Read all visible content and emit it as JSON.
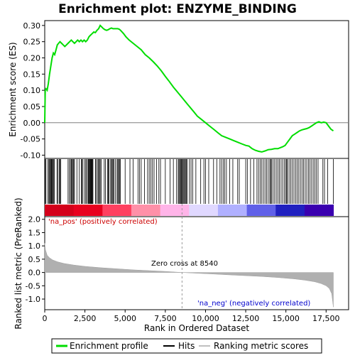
{
  "chart_data": {
    "type": "line",
    "title": "Enrichment plot: ENZYME_BINDING",
    "es_panel": {
      "ylabel": "Enrichment score (ES)",
      "ylim": [
        -0.11,
        0.315
      ],
      "yticks": [
        "-0.10",
        "-0.05",
        "0.00",
        "0.05",
        "0.10",
        "0.15",
        "0.20",
        "0.25",
        "0.30"
      ],
      "ytick_values": [
        -0.1,
        -0.05,
        0.0,
        0.05,
        0.1,
        0.15,
        0.2,
        0.25,
        0.3
      ],
      "series": [
        {
          "name": "Enrichment profile",
          "color": "#00dd00",
          "x": [
            0,
            30,
            80,
            150,
            220,
            300,
            380,
            460,
            540,
            620,
            700,
            780,
            860,
            950,
            1050,
            1150,
            1250,
            1350,
            1450,
            1550,
            1650,
            1750,
            1850,
            1950,
            2050,
            2150,
            2250,
            2350,
            2450,
            2550,
            2650,
            2750,
            2850,
            2950,
            3050,
            3150,
            3250,
            3350,
            3450,
            3550,
            3650,
            3750,
            3850,
            3950,
            4050,
            4150,
            4250,
            4350,
            4450,
            4550,
            4650,
            4750,
            4900,
            5050,
            5250,
            5500,
            5750,
            6000,
            6250,
            6500,
            6750,
            7000,
            7250,
            7500,
            7750,
            8000,
            8250,
            8500,
            8750,
            9000,
            9250,
            9500,
            9750,
            10000,
            10250,
            10500,
            10750,
            11000,
            11250,
            11500,
            11750,
            12000,
            12250,
            12500,
            12700,
            12900,
            13100,
            13300,
            13500,
            13700,
            13900,
            14100,
            14300,
            14500,
            14650,
            14800,
            14950,
            15100,
            15250,
            15400,
            15550,
            15700,
            15850,
            16000,
            16150,
            16300,
            16450,
            16600,
            16750,
            16900,
            17050,
            17200,
            17350,
            17500,
            17650,
            17800,
            17950
          ],
          "values": [
            0.0,
            0.1,
            0.105,
            0.1,
            0.12,
            0.15,
            0.175,
            0.2,
            0.215,
            0.21,
            0.225,
            0.24,
            0.245,
            0.25,
            0.245,
            0.24,
            0.235,
            0.24,
            0.245,
            0.25,
            0.255,
            0.25,
            0.245,
            0.25,
            0.255,
            0.25,
            0.255,
            0.25,
            0.255,
            0.25,
            0.255,
            0.265,
            0.27,
            0.275,
            0.28,
            0.278,
            0.285,
            0.29,
            0.3,
            0.295,
            0.29,
            0.287,
            0.285,
            0.287,
            0.29,
            0.292,
            0.29,
            0.29,
            0.29,
            0.29,
            0.288,
            0.283,
            0.275,
            0.265,
            0.255,
            0.245,
            0.235,
            0.225,
            0.21,
            0.2,
            0.188,
            0.175,
            0.16,
            0.143,
            0.127,
            0.11,
            0.095,
            0.08,
            0.065,
            0.05,
            0.035,
            0.02,
            0.01,
            0.0,
            -0.01,
            -0.02,
            -0.03,
            -0.04,
            -0.045,
            -0.05,
            -0.055,
            -0.06,
            -0.065,
            -0.07,
            -0.072,
            -0.08,
            -0.085,
            -0.088,
            -0.09,
            -0.087,
            -0.083,
            -0.082,
            -0.08,
            -0.08,
            -0.077,
            -0.074,
            -0.07,
            -0.06,
            -0.05,
            -0.04,
            -0.035,
            -0.03,
            -0.025,
            -0.022,
            -0.02,
            -0.018,
            -0.015,
            -0.01,
            -0.005,
            0.0,
            0.003,
            0.0,
            0.002,
            0.0,
            -0.01,
            -0.02,
            -0.025
          ]
        }
      ],
      "zero_line": true
    },
    "hits_panel": {
      "label": "Hits",
      "hit_positions": [
        30,
        80,
        200,
        260,
        310,
        350,
        400,
        430,
        470,
        500,
        560,
        600,
        760,
        820,
        900,
        950,
        1000,
        1450,
        1530,
        1600,
        1650,
        1700,
        1760,
        1800,
        1850,
        2000,
        2150,
        2280,
        2320,
        2380,
        2500,
        2560,
        2620,
        2700,
        2720,
        2760,
        2800,
        2830,
        2870,
        2900,
        2930,
        2960,
        3000,
        3150,
        3200,
        3300,
        3350,
        3400,
        3450,
        3520,
        3700,
        3780,
        3900,
        3950,
        4000,
        4100,
        4150,
        4200,
        4250,
        4300,
        4400,
        4500,
        4550,
        4600,
        4650,
        4700,
        5000,
        5300,
        5500,
        5800,
        5900,
        6000,
        6200,
        6400,
        6500,
        6600,
        6700,
        6800,
        6950,
        7100,
        7200,
        7500,
        7800,
        8000,
        8200,
        8300,
        8350,
        8400,
        8450,
        8500,
        8550,
        8600,
        8650,
        8700,
        8750,
        8800,
        8850,
        9000,
        9100,
        9200,
        9400,
        9700,
        9900,
        10000,
        10200,
        10500,
        10700,
        10900,
        11000,
        11100,
        11200,
        11300,
        11500,
        11700,
        12000,
        12100,
        12500,
        12600,
        12800,
        13000,
        13200,
        13300,
        13400,
        13500,
        13600,
        13700,
        13800,
        13900,
        14000,
        14050,
        14100,
        14200,
        14300,
        14400,
        14500,
        14600,
        14700,
        14800,
        14900,
        15000,
        15050,
        15100,
        15200,
        15300,
        15400,
        15500,
        15600,
        15700,
        15800,
        15900,
        16000,
        16100,
        16200,
        16300,
        16400,
        16500,
        16600,
        16700,
        16800,
        16900,
        17000,
        17300,
        17400,
        17600,
        17950
      ],
      "heatmap_colors": [
        "#d4001a",
        "#e8001f",
        "#ff4060",
        "#ff90a8",
        "#ffb4e8",
        "#e0d8ff",
        "#b0b0ff",
        "#6060e8",
        "#2020c0",
        "#3a00b0"
      ]
    },
    "metric_panel": {
      "ylabel": "Ranked list metric (PreRanked)",
      "ylim": [
        -1.4,
        2.1
      ],
      "yticks": [
        "-1.0",
        "-0.5",
        "0.0",
        "0.5",
        "1.0",
        "1.5",
        "2.0"
      ],
      "ytick_values": [
        -1.0,
        -0.5,
        0.0,
        0.5,
        1.0,
        1.5,
        2.0
      ],
      "x": [
        0,
        50,
        150,
        300,
        500,
        800,
        1200,
        1800,
        2500,
        3500,
        4500,
        5500,
        6500,
        7500,
        8540,
        9500,
        10500,
        11500,
        12500,
        13500,
        14500,
        15500,
        16200,
        16800,
        17200,
        17500,
        17700,
        17850,
        17950
      ],
      "values": [
        1.1,
        0.85,
        0.65,
        0.55,
        0.47,
        0.4,
        0.34,
        0.28,
        0.23,
        0.18,
        0.14,
        0.1,
        0.07,
        0.04,
        0.0,
        -0.03,
        -0.06,
        -0.09,
        -0.12,
        -0.15,
        -0.19,
        -0.24,
        -0.29,
        -0.35,
        -0.42,
        -0.5,
        -0.6,
        -0.8,
        -1.3
      ],
      "pos_label": "'na_pos' (positively correlated)",
      "neg_label": "'na_neg' (negatively correlated)",
      "zero_cross_label": "Zero cross at 8540",
      "zero_cross": 8540
    },
    "xaxis": {
      "xlabel": "Rank in Ordered Dataset",
      "xlim": [
        0,
        18900
      ],
      "xticks": [
        "0",
        "2,500",
        "5,000",
        "7,500",
        "10,000",
        "12,500",
        "15,000",
        "17,500"
      ],
      "xtick_values": [
        0,
        2500,
        5000,
        7500,
        10000,
        12500,
        15000,
        17500
      ]
    },
    "legend": {
      "placement": "bottom",
      "items": [
        {
          "label": "Enrichment profile",
          "color": "#00dd00"
        },
        {
          "label": "Hits",
          "color": "#000000"
        },
        {
          "label": "Ranking metric scores",
          "color": "#c0c0c0"
        }
      ]
    },
    "colors": {
      "pos_text": "#cc0000",
      "neg_text": "#0000cc",
      "metric_fill": "#b0b0b0",
      "grid": "#d0d0d0"
    }
  }
}
